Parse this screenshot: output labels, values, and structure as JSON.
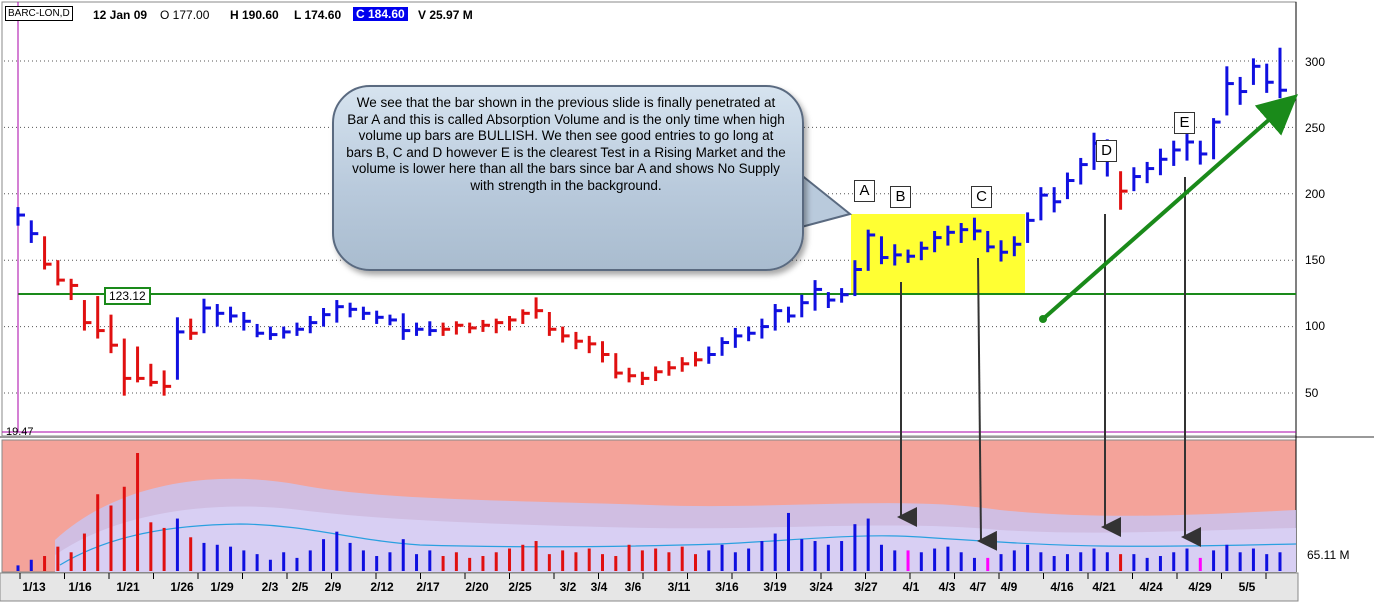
{
  "header": {
    "symbol": "BARC-LON,D",
    "date": "12 Jan 09",
    "open": "O 177.00",
    "high": "H 190.60",
    "low": "L 174.60",
    "close": "C 184.60",
    "volume": "V 25.97 M"
  },
  "annotation": "We see that the bar shown in the previous slide is finally penetrated at Bar A and this is called Absorption Volume and is the only time when high volume up bars are BULLISH. We then see good entries to go long at bars B, C and D however E is the clearest Test in a Rising Market and the volume is lower here than all the bars since bar A and shows No Supply with strength in the background.",
  "markers": [
    "A",
    "B",
    "C",
    "D",
    "E"
  ],
  "level_label": "123.12",
  "min_label": "19.47",
  "volume_label": "65.11 M",
  "colors": {
    "up": "#1010e0",
    "down": "#e01010",
    "test": "#ff00ff",
    "level": "#1a8a1a",
    "highlight": "#ffff33",
    "trend": "#1a8a1a",
    "vol_bg": "#f4a39a"
  },
  "chart_data": {
    "type": "bar",
    "y_ticks": [
      "300",
      "250",
      "200",
      "150",
      "100",
      "50"
    ],
    "ylim": [
      19.47,
      325
    ],
    "x_tick_labels": [
      "1/13",
      "1/16",
      "1/21",
      "1/26",
      "1/29",
      "2/3",
      "2/5",
      "2/9",
      "2/12",
      "2/17",
      "2/20",
      "2/25",
      "3/2",
      "3/4",
      "3/6",
      "3/11",
      "3/16",
      "3/19",
      "3/24",
      "3/27",
      "4/1",
      "4/3",
      "4/7",
      "4/9",
      "4/16",
      "4/21",
      "4/24",
      "4/29",
      "5/5"
    ],
    "horizontal_level": 123.12,
    "bars": [
      {
        "h": 190,
        "l": 176,
        "c": 184,
        "dir": "up",
        "vol": 3
      },
      {
        "h": 180,
        "l": 163,
        "c": 170,
        "dir": "up",
        "vol": 6
      },
      {
        "h": 168,
        "l": 143,
        "c": 147,
        "dir": "down",
        "vol": 8
      },
      {
        "h": 150,
        "l": 131,
        "c": 135,
        "dir": "down",
        "vol": 13
      },
      {
        "h": 136,
        "l": 120,
        "c": 131,
        "dir": "down",
        "vol": 10
      },
      {
        "h": 120,
        "l": 97,
        "c": 103,
        "dir": "down",
        "vol": 20
      },
      {
        "h": 123,
        "l": 91,
        "c": 97,
        "dir": "down",
        "vol": 41
      },
      {
        "h": 109,
        "l": 80,
        "c": 86,
        "dir": "down",
        "vol": 35
      },
      {
        "h": 91,
        "l": 48,
        "c": 61,
        "dir": "down",
        "vol": 45
      },
      {
        "h": 85,
        "l": 58,
        "c": 61,
        "dir": "down",
        "vol": 63
      },
      {
        "h": 72,
        "l": 55,
        "c": 58,
        "dir": "down",
        "vol": 26
      },
      {
        "h": 67,
        "l": 48,
        "c": 55,
        "dir": "down",
        "vol": 23
      },
      {
        "h": 107,
        "l": 60,
        "c": 96,
        "dir": "up",
        "vol": 28
      },
      {
        "h": 106,
        "l": 90,
        "c": 95,
        "dir": "down",
        "vol": 18
      },
      {
        "h": 121,
        "l": 95,
        "c": 114,
        "dir": "up",
        "vol": 15
      },
      {
        "h": 117,
        "l": 100,
        "c": 110,
        "dir": "up",
        "vol": 14
      },
      {
        "h": 115,
        "l": 103,
        "c": 108,
        "dir": "up",
        "vol": 13
      },
      {
        "h": 111,
        "l": 97,
        "c": 104,
        "dir": "up",
        "vol": 11
      },
      {
        "h": 102,
        "l": 92,
        "c": 95,
        "dir": "up",
        "vol": 9
      },
      {
        "h": 100,
        "l": 90,
        "c": 94,
        "dir": "up",
        "vol": 6
      },
      {
        "h": 100,
        "l": 91,
        "c": 96,
        "dir": "up",
        "vol": 10
      },
      {
        "h": 103,
        "l": 93,
        "c": 98,
        "dir": "up",
        "vol": 7
      },
      {
        "h": 108,
        "l": 95,
        "c": 103,
        "dir": "up",
        "vol": 11
      },
      {
        "h": 114,
        "l": 100,
        "c": 109,
        "dir": "up",
        "vol": 17
      },
      {
        "h": 120,
        "l": 103,
        "c": 115,
        "dir": "up",
        "vol": 21
      },
      {
        "h": 118,
        "l": 107,
        "c": 113,
        "dir": "up",
        "vol": 15
      },
      {
        "h": 115,
        "l": 105,
        "c": 110,
        "dir": "up",
        "vol": 11
      },
      {
        "h": 112,
        "l": 102,
        "c": 107,
        "dir": "up",
        "vol": 8
      },
      {
        "h": 109,
        "l": 101,
        "c": 105,
        "dir": "up",
        "vol": 10
      },
      {
        "h": 110,
        "l": 90,
        "c": 97,
        "dir": "up",
        "vol": 17
      },
      {
        "h": 103,
        "l": 93,
        "c": 98,
        "dir": "up",
        "vol": 9
      },
      {
        "h": 104,
        "l": 93,
        "c": 97,
        "dir": "up",
        "vol": 11
      },
      {
        "h": 103,
        "l": 93,
        "c": 98,
        "dir": "down",
        "vol": 8
      },
      {
        "h": 104,
        "l": 94,
        "c": 101,
        "dir": "down",
        "vol": 10
      },
      {
        "h": 103,
        "l": 95,
        "c": 99,
        "dir": "down",
        "vol": 7
      },
      {
        "h": 105,
        "l": 96,
        "c": 101,
        "dir": "down",
        "vol": 8
      },
      {
        "h": 106,
        "l": 95,
        "c": 103,
        "dir": "down",
        "vol": 10
      },
      {
        "h": 108,
        "l": 97,
        "c": 105,
        "dir": "down",
        "vol": 12
      },
      {
        "h": 113,
        "l": 102,
        "c": 110,
        "dir": "down",
        "vol": 14
      },
      {
        "h": 122,
        "l": 106,
        "c": 112,
        "dir": "down",
        "vol": 16
      },
      {
        "h": 111,
        "l": 93,
        "c": 98,
        "dir": "down",
        "vol": 9
      },
      {
        "h": 100,
        "l": 88,
        "c": 93,
        "dir": "down",
        "vol": 11
      },
      {
        "h": 96,
        "l": 83,
        "c": 89,
        "dir": "down",
        "vol": 10
      },
      {
        "h": 93,
        "l": 80,
        "c": 87,
        "dir": "down",
        "vol": 12
      },
      {
        "h": 89,
        "l": 73,
        "c": 79,
        "dir": "down",
        "vol": 9
      },
      {
        "h": 80,
        "l": 61,
        "c": 65,
        "dir": "down",
        "vol": 8
      },
      {
        "h": 69,
        "l": 58,
        "c": 63,
        "dir": "down",
        "vol": 14
      },
      {
        "h": 66,
        "l": 56,
        "c": 61,
        "dir": "down",
        "vol": 11
      },
      {
        "h": 70,
        "l": 59,
        "c": 66,
        "dir": "down",
        "vol": 12
      },
      {
        "h": 74,
        "l": 63,
        "c": 69,
        "dir": "down",
        "vol": 10
      },
      {
        "h": 77,
        "l": 66,
        "c": 72,
        "dir": "down",
        "vol": 13
      },
      {
        "h": 81,
        "l": 70,
        "c": 75,
        "dir": "down",
        "vol": 9
      },
      {
        "h": 85,
        "l": 72,
        "c": 79,
        "dir": "up",
        "vol": 11
      },
      {
        "h": 92,
        "l": 78,
        "c": 88,
        "dir": "up",
        "vol": 14
      },
      {
        "h": 99,
        "l": 84,
        "c": 93,
        "dir": "up",
        "vol": 10
      },
      {
        "h": 100,
        "l": 89,
        "c": 95,
        "dir": "up",
        "vol": 12
      },
      {
        "h": 106,
        "l": 91,
        "c": 100,
        "dir": "up",
        "vol": 16
      },
      {
        "h": 117,
        "l": 97,
        "c": 112,
        "dir": "up",
        "vol": 20
      },
      {
        "h": 115,
        "l": 103,
        "c": 108,
        "dir": "up",
        "vol": 31
      },
      {
        "h": 124,
        "l": 107,
        "c": 118,
        "dir": "up",
        "vol": 17
      },
      {
        "h": 135,
        "l": 112,
        "c": 128,
        "dir": "up",
        "vol": 16
      },
      {
        "h": 126,
        "l": 114,
        "c": 120,
        "dir": "up",
        "vol": 14
      },
      {
        "h": 129,
        "l": 118,
        "c": 124,
        "dir": "up",
        "vol": 16
      },
      {
        "h": 150,
        "l": 123,
        "c": 143,
        "dir": "up",
        "vol": 25
      },
      {
        "h": 173,
        "l": 142,
        "c": 169,
        "dir": "up",
        "vol": 28
      },
      {
        "h": 168,
        "l": 147,
        "c": 152,
        "dir": "up",
        "vol": 14
      },
      {
        "h": 162,
        "l": 146,
        "c": 154,
        "dir": "up",
        "vol": 11
      },
      {
        "h": 158,
        "l": 148,
        "c": 153,
        "dir": "test",
        "vol": 11
      },
      {
        "h": 164,
        "l": 150,
        "c": 159,
        "dir": "up",
        "vol": 10
      },
      {
        "h": 172,
        "l": 156,
        "c": 167,
        "dir": "up",
        "vol": 12
      },
      {
        "h": 176,
        "l": 161,
        "c": 171,
        "dir": "up",
        "vol": 13
      },
      {
        "h": 178,
        "l": 163,
        "c": 173,
        "dir": "up",
        "vol": 10
      },
      {
        "h": 182,
        "l": 165,
        "c": 172,
        "dir": "up",
        "vol": 7
      },
      {
        "h": 172,
        "l": 156,
        "c": 160,
        "dir": "test",
        "vol": 7
      },
      {
        "h": 165,
        "l": 149,
        "c": 156,
        "dir": "up",
        "vol": 9
      },
      {
        "h": 168,
        "l": 153,
        "c": 162,
        "dir": "up",
        "vol": 11
      },
      {
        "h": 186,
        "l": 163,
        "c": 180,
        "dir": "up",
        "vol": 14
      },
      {
        "h": 205,
        "l": 180,
        "c": 199,
        "dir": "up",
        "vol": 10
      },
      {
        "h": 205,
        "l": 186,
        "c": 194,
        "dir": "up",
        "vol": 8
      },
      {
        "h": 216,
        "l": 196,
        "c": 210,
        "dir": "up",
        "vol": 9
      },
      {
        "h": 227,
        "l": 207,
        "c": 222,
        "dir": "up",
        "vol": 10
      },
      {
        "h": 246,
        "l": 218,
        "c": 238,
        "dir": "up",
        "vol": 12
      },
      {
        "h": 241,
        "l": 213,
        "c": 230,
        "dir": "up",
        "vol": 10
      },
      {
        "h": 217,
        "l": 188,
        "c": 202,
        "dir": "down",
        "vol": 9
      },
      {
        "h": 220,
        "l": 202,
        "c": 213,
        "dir": "up",
        "vol": 9
      },
      {
        "h": 224,
        "l": 208,
        "c": 219,
        "dir": "up",
        "vol": 7
      },
      {
        "h": 234,
        "l": 214,
        "c": 226,
        "dir": "up",
        "vol": 8
      },
      {
        "h": 240,
        "l": 221,
        "c": 233,
        "dir": "up",
        "vol": 10
      },
      {
        "h": 245,
        "l": 225,
        "c": 239,
        "dir": "up",
        "vol": 12
      },
      {
        "h": 240,
        "l": 222,
        "c": 230,
        "dir": "test",
        "vol": 7
      },
      {
        "h": 257,
        "l": 226,
        "c": 254,
        "dir": "up",
        "vol": 11
      },
      {
        "h": 296,
        "l": 259,
        "c": 283,
        "dir": "up",
        "vol": 14
      },
      {
        "h": 288,
        "l": 267,
        "c": 277,
        "dir": "up",
        "vol": 10
      },
      {
        "h": 302,
        "l": 282,
        "c": 296,
        "dir": "up",
        "vol": 12
      },
      {
        "h": 298,
        "l": 276,
        "c": 284,
        "dir": "up",
        "vol": 9
      },
      {
        "h": 310,
        "l": 272,
        "c": 278,
        "dir": "up",
        "vol": 10
      }
    ]
  }
}
